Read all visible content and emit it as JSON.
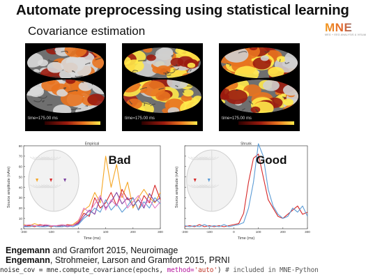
{
  "slide": {
    "title": "Automate preprocessing using statistical learning",
    "subtitle": "Covariance estimation",
    "logo_text": "MNE",
    "logo_subtext": "MEG + EEG ANALYSIS & VISUALIZATION"
  },
  "brains": [
    {
      "time_label": "time=175.00 ms",
      "variant": "bad"
    },
    {
      "time_label": "time=175.00 ms",
      "variant": "mid"
    },
    {
      "time_label": "time=175.00 ms",
      "variant": "good"
    }
  ],
  "colors": {
    "activation_hot": "#ffe94a",
    "activation_mid": "#e8731f",
    "activation_low": "#9b1b0e",
    "cortex_gray": "#6f6f6f",
    "series_red": "#d62728",
    "series_blue": "#5b9bd5",
    "series_orange": "#f5a623",
    "series_purple": "#7b3fa0",
    "series_pink": "#e377c2"
  },
  "chart_data": [
    {
      "type": "line",
      "title": "Empirical",
      "badge": "Bad",
      "xlabel": "Time (ms)",
      "ylabel": "Source amplitude (nAm)",
      "xlim": [
        -200,
        300
      ],
      "ylim": [
        0,
        80
      ],
      "xticks": [
        -200,
        -100,
        0,
        100,
        200,
        300
      ],
      "yticks": [
        0,
        10,
        20,
        30,
        40,
        50,
        60,
        70,
        80
      ],
      "x": [
        -200,
        -180,
        -160,
        -140,
        -120,
        -100,
        -80,
        -60,
        -40,
        -20,
        0,
        20,
        40,
        60,
        80,
        100,
        120,
        140,
        160,
        180,
        200,
        220,
        240,
        260,
        280,
        300
      ],
      "series": [
        {
          "color": "#f5a623",
          "values": [
            4,
            3,
            5,
            3,
            4,
            3,
            2,
            4,
            3,
            4,
            8,
            18,
            22,
            35,
            25,
            70,
            40,
            62,
            30,
            45,
            20,
            30,
            38,
            30,
            25,
            35
          ]
        },
        {
          "color": "#d62728",
          "values": [
            2,
            3,
            2,
            4,
            3,
            2,
            3,
            2,
            4,
            3,
            6,
            15,
            12,
            30,
            20,
            25,
            35,
            22,
            38,
            28,
            30,
            18,
            32,
            25,
            42,
            28
          ]
        },
        {
          "color": "#7b3fa0",
          "values": [
            3,
            2,
            3,
            2,
            3,
            3,
            2,
            3,
            2,
            3,
            5,
            12,
            18,
            14,
            30,
            20,
            26,
            35,
            24,
            30,
            22,
            28,
            20,
            34,
            26,
            30
          ]
        },
        {
          "color": "#5b9bd5",
          "values": [
            2,
            2,
            3,
            2,
            2,
            3,
            2,
            2,
            3,
            2,
            4,
            10,
            14,
            20,
            16,
            28,
            18,
            24,
            16,
            22,
            30,
            18,
            26,
            20,
            30,
            24
          ]
        },
        {
          "color": "#e377c2",
          "values": [
            3,
            4,
            3,
            3,
            4,
            3,
            3,
            4,
            3,
            3,
            7,
            20,
            16,
            24,
            32,
            18,
            28,
            22,
            34,
            20,
            26,
            32,
            22,
            28,
            20,
            26
          ]
        }
      ]
    },
    {
      "type": "line",
      "title": "Shrunk",
      "badge": "Good",
      "xlabel": "Time (ms)",
      "ylabel": "Source amplitude (nAm)",
      "xlim": [
        -200,
        300
      ],
      "ylim": [
        0,
        80
      ],
      "xticks": [
        -200,
        -100,
        0,
        100,
        200,
        300
      ],
      "yticks": [
        0,
        10,
        20,
        30,
        40,
        50,
        60,
        70,
        80
      ],
      "x": [
        -200,
        -180,
        -160,
        -140,
        -120,
        -100,
        -80,
        -60,
        -40,
        -20,
        0,
        20,
        40,
        60,
        80,
        100,
        120,
        140,
        160,
        180,
        200,
        220,
        240,
        260,
        280,
        300
      ],
      "series": [
        {
          "color": "#d62728",
          "values": [
            2,
            3,
            2,
            4,
            2,
            3,
            2,
            3,
            2,
            3,
            4,
            5,
            15,
            45,
            68,
            72,
            50,
            28,
            20,
            12,
            10,
            14,
            18,
            22,
            14,
            16
          ]
        },
        {
          "color": "#5b9bd5",
          "values": [
            3,
            2,
            3,
            2,
            4,
            2,
            3,
            2,
            4,
            2,
            3,
            4,
            6,
            20,
            45,
            82,
            70,
            38,
            22,
            14,
            10,
            12,
            20,
            16,
            22,
            12
          ]
        }
      ]
    }
  ],
  "references": [
    {
      "author": "Engemann",
      "rest": " and Gramfort 2015, Neuroimage"
    },
    {
      "author": "Engemann",
      "rest": ", Strohmeier, Larson and Gramfort 2015, PRNI"
    }
  ],
  "code": {
    "pre": "noise_cov = mne.compute_covariance(epochs, ",
    "kw": "method=",
    "str": "'auto'",
    "post": ") ",
    "comment": "# included in MNE-Python"
  }
}
